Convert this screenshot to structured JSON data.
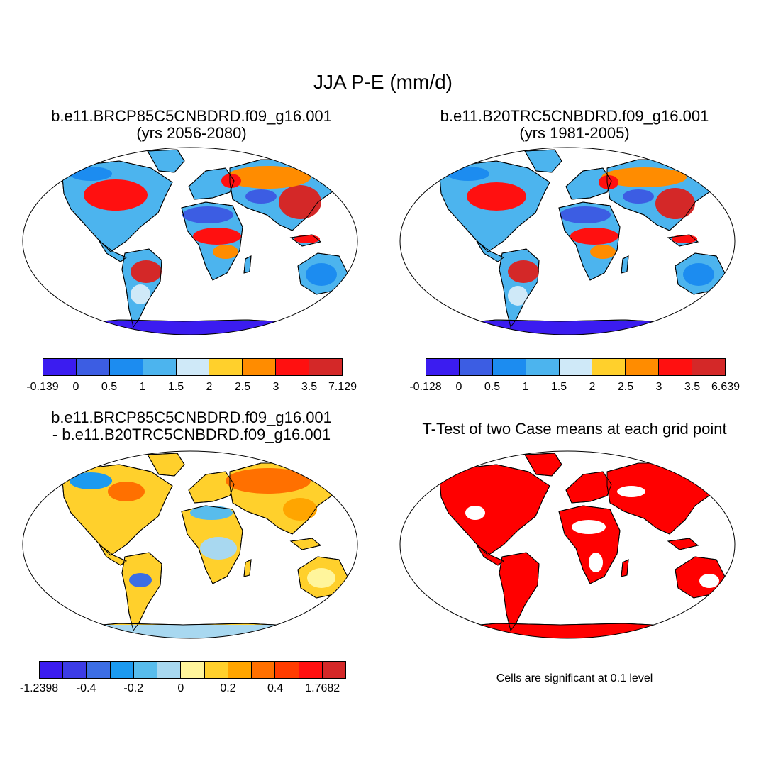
{
  "figure_title": "JJA P-E (mm/d)",
  "panels": [
    {
      "title_line1": "b.e11.BRCP85C5CNBDRD.f09_g16.001",
      "title_line2": "(yrs 2056-2080)"
    },
    {
      "title_line1": "b.e11.B20TRC5CNBDRD.f09_g16.001",
      "title_line2": "(yrs 1981-2005)"
    },
    {
      "title_line1": "b.e11.BRCP85C5CNBDRD.f09_g16.001",
      "title_line2": "- b.e11.B20TRC5CNBDRD.f09_g16.001"
    },
    {
      "title_line1": "T-Test of two Case means at each grid point"
    }
  ],
  "colorbars": {
    "cb1": {
      "colors": [
        "#3b1cf0",
        "#3c5de3",
        "#1c8cf0",
        "#4cb4ee",
        "#cfe9f8",
        "#ffd02c",
        "#ff8c00",
        "#ff1010",
        "#d42828"
      ],
      "labels": [
        "-0.139",
        "0",
        "0.5",
        "1",
        "1.5",
        "2",
        "2.5",
        "3",
        "3.5",
        "7.129"
      ]
    },
    "cb2": {
      "colors": [
        "#3b1cf0",
        "#3c5de3",
        "#1c8cf0",
        "#4cb4ee",
        "#cfe9f8",
        "#ffd02c",
        "#ff8c00",
        "#ff1010",
        "#d42828"
      ],
      "labels": [
        "-0.128",
        "0",
        "0.5",
        "1",
        "1.5",
        "2",
        "2.5",
        "3",
        "3.5",
        "6.639"
      ]
    },
    "cb3": {
      "colors": [
        "#3b1cf0",
        "#3c3ce6",
        "#3c6ee4",
        "#1c9af0",
        "#58bcec",
        "#a8d8f0",
        "#fff59c",
        "#ffd02c",
        "#ffa500",
        "#ff7000",
        "#ff3c00",
        "#ff1010",
        "#d42828"
      ],
      "labels": [
        "-1.2398",
        "-0.4",
        "-0.2",
        "0",
        "0.2",
        "0.4",
        "1.7682"
      ]
    }
  },
  "significance_note": "Cells are significant at 0.1 level",
  "legend_colors": {
    "significant": "#ff0000"
  }
}
